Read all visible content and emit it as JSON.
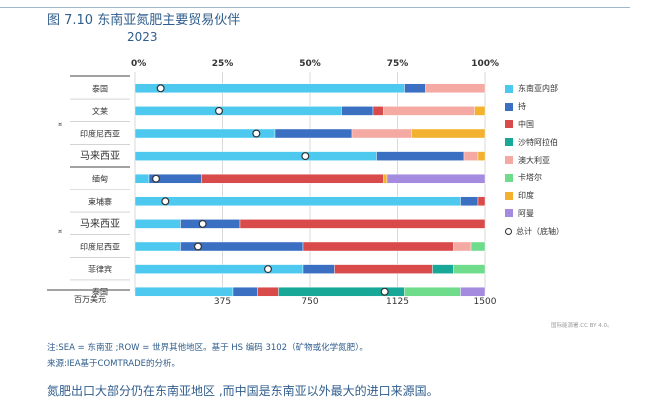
{
  "figure": {
    "title": "图 7.10 东南亚氮肥主要贸易伙伴",
    "subtitle": "2023",
    "credit": "国际能源署.CC BY 4.0。",
    "note": "注:SEA = 东南亚 ;ROW = 世界其他地区。基于 HS 编码 3102（矿物或化学氮肥）。",
    "source": "来源:IEA基于COMTRADE的分析。",
    "caption": "氮肥出口大部分仍在东南亚地区 ,而中国是东南亚以外最大的进口来源国。"
  },
  "colors": {
    "东南亚内部": "#4dc9f0",
    "持": "#3a6fc2",
    "中国": "#d94a4a",
    "沙特阿拉伯": "#17a898",
    "澳大利亚": "#f4a9a3",
    "卡塔尔": "#6fdc8c",
    "印度": "#f2b12e",
    "阿曼": "#a58be0"
  },
  "chart_data": {
    "type": "bar",
    "orientation": "horizontal",
    "stacked": true,
    "top_axis_ticks": [
      "0%",
      "25%",
      "50%",
      "75%",
      "100%"
    ],
    "bottom_axis_ticks": [
      "375",
      "750",
      "1125",
      "1500"
    ],
    "bottom_axis_label": "百万美元",
    "group_marks": [
      "¤",
      "¤"
    ],
    "legend": [
      "东南亚内部",
      "持",
      "中国",
      "沙特阿拉伯",
      "澳大利亚",
      "卡塔尔",
      "印度",
      "阿曼",
      "总计（底轴）"
    ],
    "rows": [
      {
        "label": "泰国",
        "segments": {
          "东南亚内部": 77,
          "持": 6,
          "澳大利亚": 17
        },
        "total": 110
      },
      {
        "label": "文莱",
        "segments": {
          "东南亚内部": 59,
          "持": 9,
          "中国": 3,
          "澳大利亚": 26,
          "印度": 3
        },
        "total": 360
      },
      {
        "label": "印度尼西亚",
        "segments": {
          "东南亚内部": 40,
          "持": 22,
          "澳大利亚": 17,
          "印度": 21
        },
        "total": 520
      },
      {
        "label": "马来西亚",
        "segments": {
          "东南亚内部": 69,
          "持": 25,
          "澳大利亚": 4,
          "印度": 2
        },
        "total": 730
      },
      {
        "label": "缅甸",
        "segments": {
          "东南亚内部": 4,
          "持": 15,
          "中国": 52,
          "印度": 1,
          "阿曼": 28
        },
        "total": 90
      },
      {
        "label": "柬埔寨",
        "segments": {
          "东南亚内部": 93,
          "持": 5,
          "中国": 2
        },
        "total": 130
      },
      {
        "label": "马来西亚",
        "segments": {
          "东南亚内部": 13,
          "持": 17,
          "中国": 70
        },
        "total": 290
      },
      {
        "label": "印度尼西亚",
        "segments": {
          "东南亚内部": 13,
          "持": 35,
          "中国": 43,
          "澳大利亚": 5,
          "卡塔尔": 4
        },
        "total": 270
      },
      {
        "label": "菲律宾",
        "segments": {
          "东南亚内部": 48,
          "持": 9,
          "中国": 28,
          "沙特阿拉伯": 6,
          "卡塔尔": 9
        },
        "total": 570
      },
      {
        "label": "泰国",
        "segments": {
          "东南亚内部": 28,
          "持": 7,
          "中国": 6,
          "沙特阿拉伯": 36,
          "卡塔尔": 16,
          "阿曼": 7
        },
        "total": 1070
      }
    ]
  }
}
